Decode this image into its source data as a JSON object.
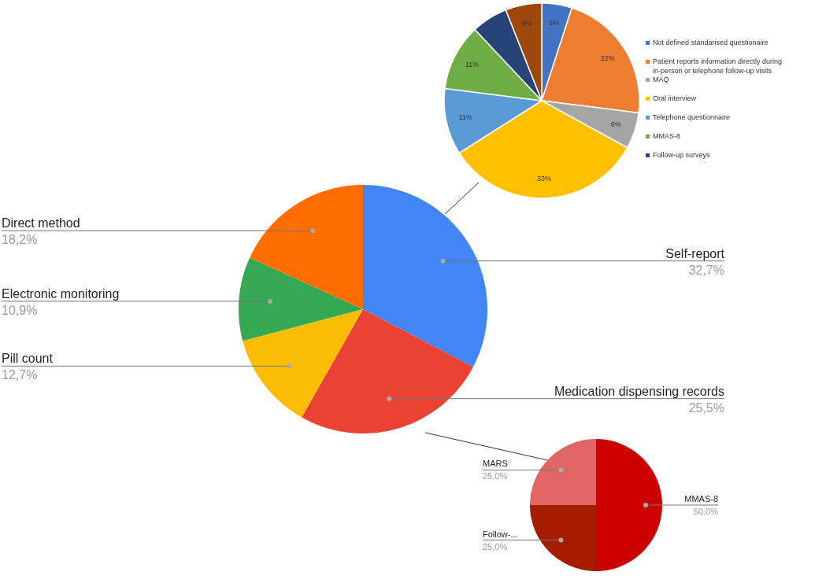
{
  "chart_data": [
    {
      "type": "pie",
      "categories": [
        "Self-report",
        "Medication dispensing records",
        "Pill count",
        "Electronic monitoring",
        "Direct method"
      ],
      "values": [
        32.7,
        25.5,
        12.7,
        10.9,
        18.2
      ],
      "colors": [
        "#4285f4",
        "#ea4335",
        "#fbbc04",
        "#34a853",
        "#ff6d01"
      ],
      "value_labels": [
        "32,7%",
        "25,5%",
        "12,7%",
        "10,9%",
        "18,2%"
      ]
    },
    {
      "type": "pie",
      "categories": [
        "Not defined standarised questionaire",
        "Patient reports information directly during in-person or telephone follow-up visits",
        "MAQ",
        "Oral interview",
        "Telephone questionnaire",
        "MMAS-8",
        "Follow-up surveys",
        null
      ],
      "values": [
        5,
        22,
        6,
        33,
        11,
        11,
        6,
        6
      ],
      "colors": [
        "#4472c4",
        "#ed7d31",
        "#a5a5a5",
        "#ffc000",
        "#5b9bd5",
        "#70ad47",
        "#264478",
        "#9e480e"
      ],
      "value_labels": [
        "5%",
        "22%",
        "6%",
        "33%",
        "11%",
        "11%",
        null,
        "6%"
      ],
      "legend": "right"
    },
    {
      "type": "pie",
      "categories": [
        "MMAS-8",
        "Follow-...",
        "MARS"
      ],
      "values": [
        50,
        25,
        25
      ],
      "colors": [
        "#cc0000",
        "#a61c00",
        "#e06666"
      ],
      "value_labels": [
        "50,0%",
        "25,0%",
        "25,0%"
      ]
    }
  ]
}
